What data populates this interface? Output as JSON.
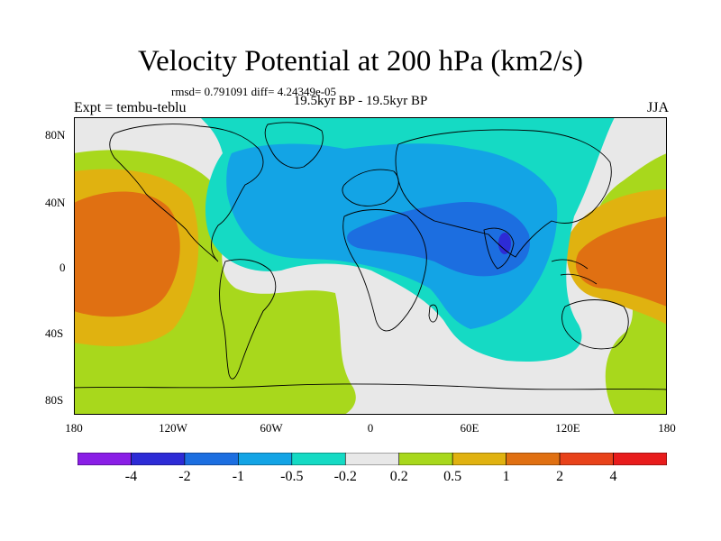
{
  "header": {
    "title": "Velocity Potential at 200 hPa (km2/s)",
    "stats": "rmsd= 0.791091 diff= 4.24349e-05",
    "subtitle": "19.5kyr BP - 19.5kyr BP",
    "experiment": "Expt = tembu-teblu",
    "season": "JJA"
  },
  "axes": {
    "y_ticks": [
      "80N",
      "40N",
      "0",
      "40S",
      "80S"
    ],
    "x_ticks": [
      "180",
      "120W",
      "60W",
      "0",
      "60E",
      "120E",
      "180"
    ],
    "lon_range": [
      -180,
      180
    ],
    "lat_range": [
      -90,
      90
    ]
  },
  "colorbar": {
    "bins": [
      {
        "color": "#8a1ee6"
      },
      {
        "color": "#2d2bd6"
      },
      {
        "color": "#1c6ee0"
      },
      {
        "color": "#13a4e5"
      },
      {
        "color": "#15dac4"
      },
      {
        "color": "#e8e8e8"
      },
      {
        "color": "#a8d81c"
      },
      {
        "color": "#e0b210"
      },
      {
        "color": "#e07012"
      },
      {
        "color": "#e8421a"
      },
      {
        "color": "#e81c1c"
      }
    ],
    "labels": [
      "-4",
      "-2",
      "-1",
      "-0.5",
      "-0.2",
      "0.2",
      "0.5",
      "1",
      "2",
      "4"
    ]
  },
  "field_colors": {
    "ocean_neutral": "#e8e8e8",
    "cyan": "#15dac4",
    "light_blue": "#13a4e5",
    "blue": "#1c6ee0",
    "dark_blue": "#2d2bd6",
    "yellow_green": "#a8d81c",
    "gold": "#e0b210",
    "orange": "#e07012"
  }
}
